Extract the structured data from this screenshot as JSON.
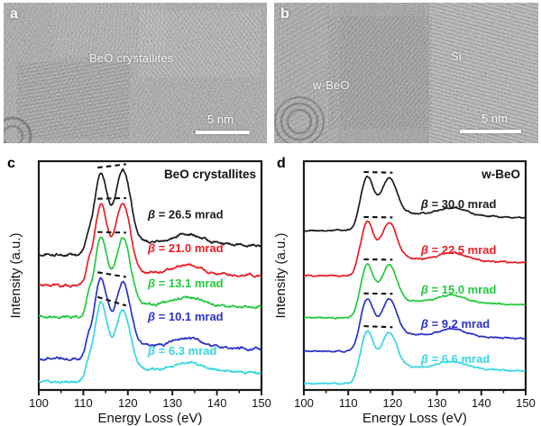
{
  "panels": {
    "a": {
      "letter": "a",
      "annotation": "BeO crystallites",
      "scale_bar_label": "5 nm"
    },
    "b": {
      "letter": "b",
      "annotation_left": "w-BeO",
      "annotation_right": "Si",
      "scale_bar_label": "5 nm"
    },
    "c": {
      "letter": "c"
    },
    "d": {
      "letter": "d"
    }
  },
  "chart_data": [
    {
      "type": "line",
      "panel": "c",
      "title": "BeO crystallites",
      "xlabel": "Energy Loss (eV)",
      "ylabel": "Intensity (a.u.)",
      "xlim": [
        100,
        150
      ],
      "x_major_ticks": [
        100,
        110,
        120,
        130,
        140,
        150
      ],
      "x_minor_ticks": [
        105,
        115,
        125,
        135,
        145
      ],
      "grid": false,
      "features_eV": {
        "peak1": 113.9,
        "peak2": 118.9,
        "pre_edge_shoulder": 111.2,
        "broad_feature": 133.5
      },
      "peak_guide_style": "black dashed segment joining the two peak maxima of each curve",
      "shape": {
        "sigma1": 1.4,
        "sigma2": 1.65,
        "shoulder_sigma": 0.75,
        "broad_sigma": 3.2,
        "shoulder_height": 0.22,
        "broad_height": 0.13,
        "continuum": 0.19,
        "edge_onset_eV": 112.6,
        "noise": 0.011
      },
      "series": [
        {
          "label": "β = 26.5 mrad",
          "color": "#1c1c1c",
          "offset": 0.59,
          "amp": 0.375,
          "peak_heights": [
            1.0,
            1.05
          ],
          "label_x_eV": 124.5,
          "label_y_frac": 0.765
        },
        {
          "label": "β = 21.0 mrad",
          "color": "#ec1c24",
          "offset": 0.457,
          "amp": 0.36,
          "peak_heights": [
            1.0,
            1.01
          ],
          "label_x_eV": 124.5,
          "label_y_frac": 0.618
        },
        {
          "label": "β = 13.1 mrad",
          "color": "#22c93e",
          "offset": 0.319,
          "amp": 0.35,
          "peak_heights": [
            1.0,
            0.99
          ],
          "label_x_eV": 124.5,
          "label_y_frac": 0.464
        },
        {
          "label": "β = 10.1 mrad",
          "color": "#2b32c8",
          "offset": 0.138,
          "amp": 0.355,
          "peak_heights": [
            1.0,
            0.93
          ],
          "label_x_eV": 124.5,
          "label_y_frac": 0.319
        },
        {
          "label": "β = 6.3 mrad",
          "color": "#35d6e3",
          "offset": 0.035,
          "amp": 0.35,
          "peak_heights": [
            1.0,
            0.87
          ],
          "label_x_eV": 124.5,
          "label_y_frac": 0.169
        }
      ]
    },
    {
      "type": "line",
      "panel": "d",
      "title": "w-BeO",
      "xlabel": "Energy Loss (eV)",
      "ylabel": "Intensity (a.u.)",
      "xlim": [
        100,
        150
      ],
      "x_major_ticks": [
        100,
        110,
        120,
        130,
        140,
        150
      ],
      "x_minor_ticks": [
        105,
        115,
        125,
        135,
        145
      ],
      "grid": false,
      "features_eV": {
        "peak1": 114.2,
        "peak2": 119.3,
        "pre_edge_shoulder": 112.3,
        "broad_feature": 133.5
      },
      "peak_guide_style": "black dashed segment joining the two peak maxima of each curve",
      "shape": {
        "sigma1": 1.4,
        "sigma2": 1.65,
        "shoulder_sigma": 0.7,
        "broad_sigma": 3.0,
        "shoulder_height": 0.1,
        "broad_height": 0.2,
        "continuum": 0.48,
        "edge_onset_eV": 113.0,
        "noise": 0.006
      },
      "series": [
        {
          "label": "β = 30.0 mrad",
          "color": "#1c1c1c",
          "offset": 0.697,
          "amp": 0.235,
          "peak_heights": [
            1.0,
            0.96
          ],
          "label_x_eV": 126.4,
          "label_y_frac": 0.811
        },
        {
          "label": "β = 22.5 mrad",
          "color": "#ec1c24",
          "offset": 0.5,
          "amp": 0.235,
          "peak_heights": [
            1.0,
            0.97
          ],
          "label_x_eV": 126.4,
          "label_y_frac": 0.61
        },
        {
          "label": "β = 15.0 mrad",
          "color": "#22c93e",
          "offset": 0.315,
          "amp": 0.235,
          "peak_heights": [
            1.0,
            0.97
          ],
          "label_x_eV": 126.4,
          "label_y_frac": 0.437
        },
        {
          "label": "β = 9.2 mrad",
          "color": "#2b32c8",
          "offset": 0.169,
          "amp": 0.232,
          "peak_heights": [
            1.0,
            0.97
          ],
          "label_x_eV": 126.4,
          "label_y_frac": 0.287
        },
        {
          "label": "β = 6.6 mrad",
          "color": "#35d6e3",
          "offset": 0.028,
          "amp": 0.23,
          "peak_heights": [
            1.0,
            0.95
          ],
          "label_x_eV": 126.4,
          "label_y_frac": 0.134
        }
      ]
    }
  ],
  "style": {
    "guide_dash_color": "#111111",
    "axis_color": "#1a1a1a",
    "background": "#ffffff"
  }
}
